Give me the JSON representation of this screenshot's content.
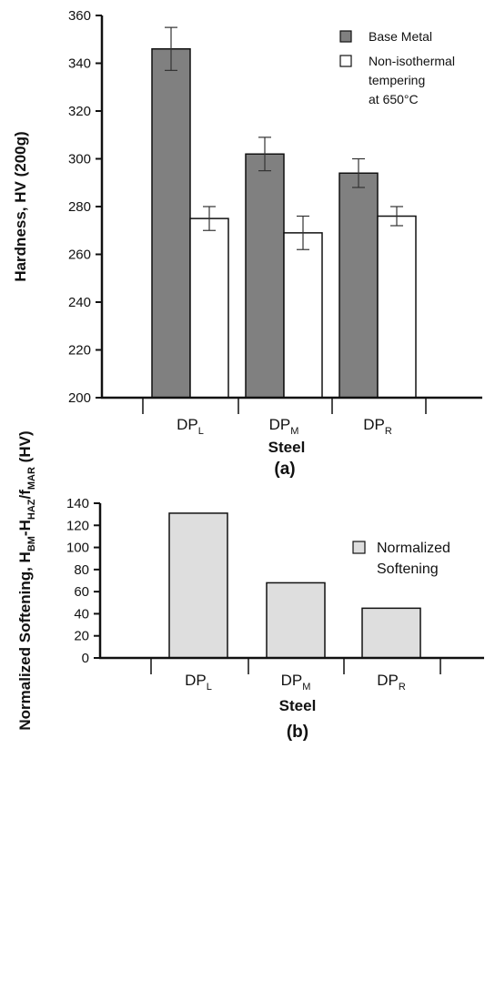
{
  "colors": {
    "base_metal": "#808080",
    "tempering": "#ffffff",
    "softening": "#dedede",
    "axis": "#111111"
  },
  "chart_data": [
    {
      "type": "bar",
      "panel_label": "(a)",
      "categories": [
        {
          "main": "DP",
          "sub": "L"
        },
        {
          "main": "DP",
          "sub": "M"
        },
        {
          "main": "DP",
          "sub": "R"
        }
      ],
      "series": [
        {
          "name_lines": [
            "Base Metal"
          ],
          "values": [
            346,
            302,
            294
          ],
          "errors": [
            9,
            7,
            6
          ],
          "color": "#808080"
        },
        {
          "name_lines": [
            "Non-isothermal",
            "tempering",
            "at 650°C"
          ],
          "values": [
            275,
            269,
            276
          ],
          "errors": [
            5,
            7,
            4
          ],
          "color": "#ffffff"
        }
      ],
      "xlabel": "Steel",
      "ylabel": "Hardness, HV (200g)",
      "ylim": [
        200,
        360
      ],
      "yticks": [
        "200",
        "220",
        "240",
        "260",
        "280",
        "300",
        "320",
        "340",
        "360"
      ],
      "legend_position": "top-right"
    },
    {
      "type": "bar",
      "panel_label": "(b)",
      "categories": [
        {
          "main": "DP",
          "sub": "L"
        },
        {
          "main": "DP",
          "sub": "M"
        },
        {
          "main": "DP",
          "sub": "R"
        }
      ],
      "series": [
        {
          "name_lines": [
            "Normalized",
            "Softening"
          ],
          "values": [
            131,
            68,
            45
          ],
          "color": "#dedede"
        }
      ],
      "xlabel": "Steel",
      "ylabel_parts": [
        {
          "t": "Normalized Softening, H",
          "s": false
        },
        {
          "t": "BM",
          "s": true
        },
        {
          "t": "-H",
          "s": false
        },
        {
          "t": "HAZ",
          "s": true
        },
        {
          "t": "/f",
          "s": false
        },
        {
          "t": "MAR",
          "s": true
        },
        {
          "t": " (HV)",
          "s": false
        }
      ],
      "ylim": [
        0,
        140
      ],
      "yticks": [
        "0",
        "20",
        "40",
        "60",
        "80",
        "100",
        "120",
        "140"
      ],
      "legend_position": "top-right"
    }
  ]
}
